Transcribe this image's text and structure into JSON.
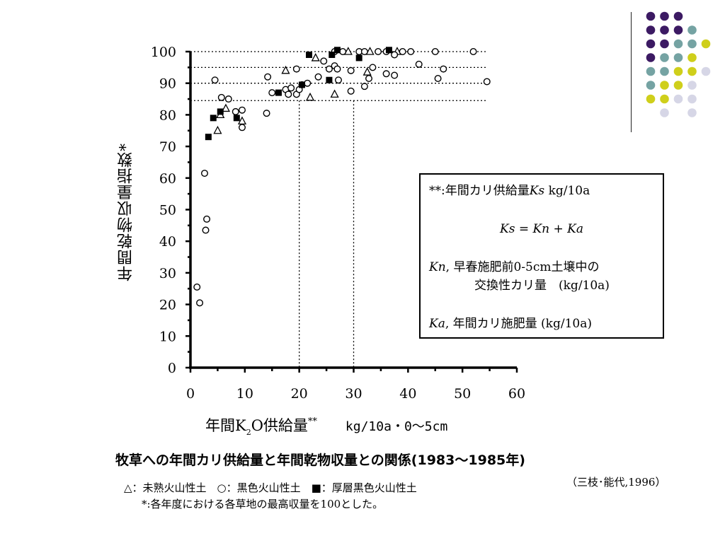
{
  "decoration": {
    "colors": {
      "purple": "#3c1a63",
      "teal": "#75a3a3",
      "yellow": "#cfcf1b",
      "lavender": "#d6d6e6"
    },
    "dot_grid": [
      [
        "purple",
        "purple",
        "purple",
        null
      ],
      [
        "purple",
        "purple",
        "purple",
        "teal"
      ],
      [
        "purple",
        "purple",
        "teal",
        "teal",
        "yellow"
      ],
      [
        "purple",
        "teal",
        "teal",
        "yellow"
      ],
      [
        "teal",
        "teal",
        "yellow",
        "yellow",
        "lavender"
      ],
      [
        "teal",
        "yellow",
        "yellow",
        "lavender"
      ],
      [
        "yellow",
        "yellow",
        "lavender",
        "lavender"
      ],
      [
        null,
        "lavender",
        null,
        "lavender"
      ]
    ]
  },
  "axis": {
    "y_label": "年間乾物収量指数*",
    "x_label_main_a": "年間K",
    "x_label_sub": "2",
    "x_label_main_b": "O供給量",
    "x_label_sup": "**",
    "x_label_units": "kg/10a・0～5cm"
  },
  "legend": {
    "line1_prefix": "**:年間カリ供給量",
    "line1_var": "Ks",
    "line1_suffix": " kg/10a",
    "equation": "Ks = Kn + Ka",
    "kn_var": "Kn",
    "kn_text1": ",  早春施肥前0-5cm土壌中の",
    "kn_text2": "交換性カリ量　(kg/10a)",
    "ka_var": "Ka",
    "ka_text": ",  年間カリ施肥量  (kg/10a)"
  },
  "caption": {
    "title": "牧草への年間カリ供給量と年間乾物収量との関係(1983～1985年)",
    "note1": "△：未熟火山性土　○：黒色火山性土　■：厚層黒色火山性土",
    "note2": "*:各年度における各草地の最高収量を100とした。",
    "citation": "（三枝･能代,1996）"
  },
  "chart_data": {
    "type": "scatter",
    "xlim": [
      0,
      60
    ],
    "ylim": [
      0,
      100
    ],
    "x_ticks": [
      "0",
      "10",
      "20",
      "30",
      "40",
      "50",
      "60"
    ],
    "y_ticks": [
      "0",
      "10",
      "20",
      "30",
      "40",
      "50",
      "60",
      "70",
      "80",
      "90",
      "100"
    ],
    "grid": false,
    "reference_lines": {
      "horizontal": [
        100,
        95,
        90,
        84.5
      ],
      "vertical": [
        20,
        30
      ]
    },
    "series": [
      {
        "name": "未熟火山性土",
        "marker": "triangle",
        "points": [
          [
            5,
            75
          ],
          [
            5.5,
            80
          ],
          [
            6.5,
            82
          ],
          [
            9.5,
            78
          ],
          [
            17.5,
            94
          ],
          [
            22,
            85.5
          ],
          [
            23,
            98
          ],
          [
            26.5,
            86.5
          ],
          [
            29,
            100
          ],
          [
            32.5,
            93.5
          ],
          [
            33,
            100
          ],
          [
            38,
            100
          ]
        ]
      },
      {
        "name": "黒色火山性土",
        "marker": "circle",
        "points": [
          [
            1.2,
            25.5
          ],
          [
            1.7,
            20.5
          ],
          [
            2.6,
            61.5
          ],
          [
            3,
            47
          ],
          [
            2.8,
            43.5
          ],
          [
            4.5,
            91
          ],
          [
            5.7,
            85.5
          ],
          [
            7,
            85
          ],
          [
            8.3,
            81
          ],
          [
            9.5,
            76
          ],
          [
            9.5,
            81.5
          ],
          [
            14,
            80.5
          ],
          [
            14.2,
            92
          ],
          [
            15,
            87
          ],
          [
            17.5,
            88
          ],
          [
            18,
            86.5
          ],
          [
            18.5,
            88.5
          ],
          [
            19.5,
            86.5
          ],
          [
            20,
            88
          ],
          [
            20.5,
            89.5
          ],
          [
            21.5,
            90
          ],
          [
            19.5,
            94.5
          ],
          [
            23.5,
            92
          ],
          [
            24.5,
            97
          ],
          [
            25.5,
            94.5
          ],
          [
            26.5,
            95.5
          ],
          [
            26.5,
            100
          ],
          [
            27,
            94.5
          ],
          [
            27.2,
            91
          ],
          [
            28,
            100
          ],
          [
            29.5,
            94
          ],
          [
            29.5,
            87.5
          ],
          [
            31,
            100
          ],
          [
            32,
            89
          ],
          [
            32,
            100
          ],
          [
            32.8,
            91.5
          ],
          [
            33.5,
            95
          ],
          [
            34.5,
            100
          ],
          [
            36,
            93
          ],
          [
            36,
            100
          ],
          [
            37.5,
            92.5
          ],
          [
            37.5,
            99
          ],
          [
            39,
            100
          ],
          [
            40.5,
            100
          ],
          [
            42,
            96
          ],
          [
            45,
            100
          ],
          [
            45.5,
            91.5
          ],
          [
            46.5,
            94.5
          ],
          [
            52,
            100
          ],
          [
            54.5,
            90.5
          ]
        ]
      },
      {
        "name": "厚層黒色火山性土",
        "marker": "square",
        "points": [
          [
            3.3,
            73
          ],
          [
            4.2,
            79
          ],
          [
            5.5,
            81
          ],
          [
            8.5,
            79
          ],
          [
            16.2,
            87
          ],
          [
            20.5,
            89.5
          ],
          [
            21.8,
            99
          ],
          [
            25.5,
            91
          ],
          [
            26,
            99
          ],
          [
            27,
            100.5
          ],
          [
            31,
            98
          ],
          [
            36.5,
            100.5
          ]
        ]
      }
    ]
  }
}
